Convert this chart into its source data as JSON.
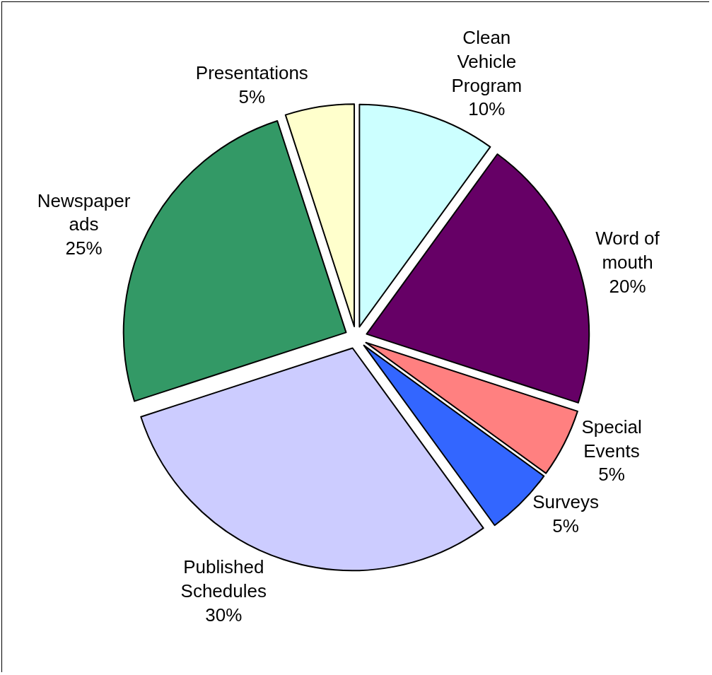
{
  "chart_data": {
    "type": "pie",
    "categories": [
      "Clean Vehicle Program",
      "Word of mouth",
      "Special Events",
      "Surveys",
      "Published Schedules",
      "Newspaper ads",
      "Presentations"
    ],
    "values": [
      10,
      20,
      5,
      5,
      30,
      25,
      5
    ],
    "value_labels": [
      "10%",
      "20%",
      "5%",
      "5%",
      "30%",
      "25%",
      "5%"
    ],
    "colors": [
      "#ccffff",
      "#660066",
      "#ff8080",
      "#3366ff",
      "#ccccff",
      "#339966",
      "#ffffcc"
    ],
    "legend": false
  }
}
